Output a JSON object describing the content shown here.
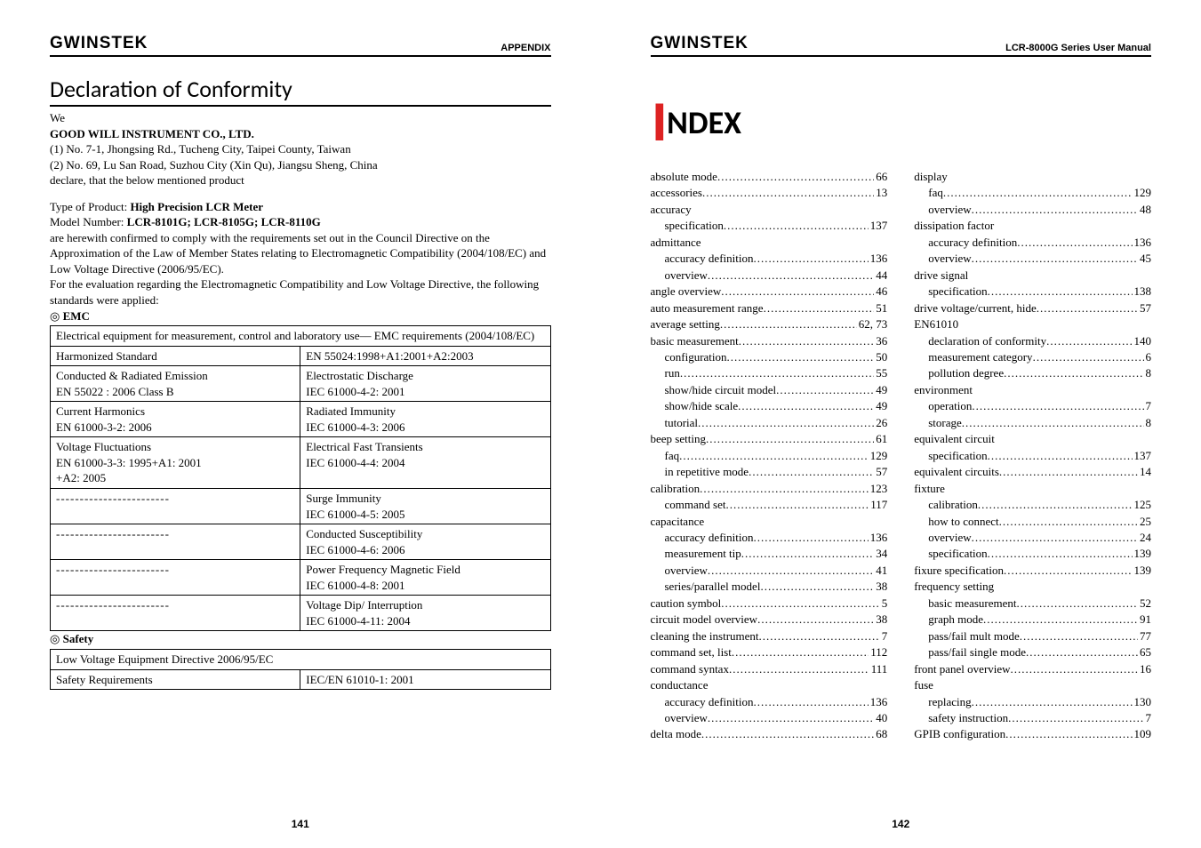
{
  "brand": "GWINSTEK",
  "left": {
    "header_right": "APPENDIX",
    "page_num": "141",
    "title": "Declaration of Conformity",
    "we": "We",
    "company": "GOOD WILL INSTRUMENT CO., LTD.",
    "addr1": "(1) No. 7-1, Jhongsing Rd., Tucheng City, Taipei County, Taiwan",
    "addr2": "(2) No. 69, Lu San Road, Suzhou City (Xin Qu), Jiangsu Sheng, China",
    "declare": "declare, that the below mentioned product",
    "type_label": "Type of Product: ",
    "type_value": "High Precision LCR Meter",
    "model_label": "Model Number: ",
    "model_value": "LCR-8101G; LCR-8105G; LCR-8110G",
    "para1": "are herewith confirmed to comply with the requirements set out in the Council Directive on the Approximation of the Law of Member States relating to Electromagnetic Compatibility (2004/108/EC) and Low Voltage Directive (2006/95/EC).",
    "para2": "For the evaluation regarding the Electromagnetic Compatibility and Low Voltage Directive, the following standards were applied:",
    "emc_label": "◎ EMC",
    "emc_caption": "Electrical equipment for measurement, control and laboratory use–– EMC requirements (2004/108/EC)",
    "emc_rows": [
      [
        "Harmonized Standard",
        "EN 55024:1998+A1:2001+A2:2003"
      ],
      [
        "Conducted & Radiated Emission\nEN 55022 : 2006       Class B",
        "Electrostatic Discharge\nIEC 61000-4-2: 2001"
      ],
      [
        "Current Harmonics\nEN 61000-3-2: 2006",
        "Radiated Immunity\nIEC 61000-4-3: 2006"
      ],
      [
        "Voltage Fluctuations\nEN 61000-3-3: 1995+A1: 2001\n+A2: 2005",
        "Electrical Fast Transients\nIEC 61000-4-4: 2004"
      ],
      [
        "------------------------",
        "Surge Immunity\nIEC 61000-4-5: 2005"
      ],
      [
        "------------------------",
        "Conducted Susceptibility\nIEC 61000-4-6: 2006"
      ],
      [
        "------------------------",
        "Power Frequency Magnetic Field\nIEC 61000-4-8: 2001"
      ],
      [
        "------------------------",
        "Voltage Dip/ Interruption\nIEC 61000-4-11: 2004"
      ]
    ],
    "safety_label": "◎ Safety",
    "safety_caption": "Low Voltage Equipment Directive 2006/95/EC",
    "safety_row": [
      "Safety Requirements",
      "IEC/EN 61010-1: 2001"
    ]
  },
  "right": {
    "header_right": "LCR-8000G Series User Manual",
    "page_num": "142",
    "title_rest": "NDEX",
    "col1": [
      {
        "t": "absolute mode",
        "p": "66"
      },
      {
        "t": "accessories",
        "p": "13"
      },
      {
        "t": "accuracy",
        "head": true
      },
      {
        "t": "specification",
        "p": "137",
        "sub": true
      },
      {
        "t": "admittance",
        "head": true
      },
      {
        "t": "accuracy definition",
        "p": "136",
        "sub": true
      },
      {
        "t": "overview",
        "p": "44",
        "sub": true
      },
      {
        "t": "angle overview",
        "p": "46"
      },
      {
        "t": "auto measurement range",
        "p": "51"
      },
      {
        "t": "average setting",
        "p": "62, 73"
      },
      {
        "t": "basic measurement",
        "p": "36"
      },
      {
        "t": "configuration",
        "p": "50",
        "sub": true
      },
      {
        "t": "run",
        "p": "55",
        "sub": true
      },
      {
        "t": "show/hide circuit model",
        "p": "49",
        "sub": true
      },
      {
        "t": "show/hide scale",
        "p": "49",
        "sub": true
      },
      {
        "t": "tutorial",
        "p": "26",
        "sub": true
      },
      {
        "t": "beep setting",
        "p": "61"
      },
      {
        "t": "faq",
        "p": "129",
        "sub": true
      },
      {
        "t": "in repetitive mode",
        "p": "57",
        "sub": true
      },
      {
        "t": "calibration",
        "p": "123"
      },
      {
        "t": "command set",
        "p": "117",
        "sub": true
      },
      {
        "t": "capacitance",
        "head": true
      },
      {
        "t": "accuracy definition",
        "p": "136",
        "sub": true
      },
      {
        "t": "measurement tip",
        "p": "34",
        "sub": true
      },
      {
        "t": "overview",
        "p": "41",
        "sub": true
      },
      {
        "t": "series/parallel model",
        "p": "38",
        "sub": true
      },
      {
        "t": "caution symbol",
        "p": "5"
      },
      {
        "t": "circuit model overview",
        "p": "38"
      },
      {
        "t": "cleaning the instrument",
        "p": "7"
      },
      {
        "t": "command set, list",
        "p": "112"
      },
      {
        "t": "command syntax",
        "p": "111"
      },
      {
        "t": "conductance",
        "head": true
      },
      {
        "t": "accuracy definition",
        "p": "136",
        "sub": true
      },
      {
        "t": "overview",
        "p": "40",
        "sub": true
      },
      {
        "t": "delta mode",
        "p": "68"
      }
    ],
    "col2": [
      {
        "t": "display",
        "head": true
      },
      {
        "t": "faq",
        "p": "129",
        "sub": true
      },
      {
        "t": "overview",
        "p": "48",
        "sub": true
      },
      {
        "t": "dissipation factor",
        "head": true
      },
      {
        "t": "accuracy definition",
        "p": "136",
        "sub": true
      },
      {
        "t": "overview",
        "p": "45",
        "sub": true
      },
      {
        "t": "drive signal",
        "head": true
      },
      {
        "t": "specification",
        "p": "138",
        "sub": true
      },
      {
        "t": "drive voltage/current, hide",
        "p": "57"
      },
      {
        "t": "EN61010",
        "head": true
      },
      {
        "t": "declaration of conformity",
        "p": "140",
        "sub": true
      },
      {
        "t": "measurement category",
        "p": "6",
        "sub": true
      },
      {
        "t": "pollution degree",
        "p": "8",
        "sub": true
      },
      {
        "t": "environment",
        "head": true
      },
      {
        "t": "operation",
        "p": "7",
        "sub": true
      },
      {
        "t": "storage",
        "p": "8",
        "sub": true
      },
      {
        "t": "equivalent circuit",
        "head": true
      },
      {
        "t": "specification",
        "p": "137",
        "sub": true
      },
      {
        "t": "equivalent circuits",
        "p": "14"
      },
      {
        "t": "fixture",
        "head": true
      },
      {
        "t": "calibration",
        "p": "125",
        "sub": true
      },
      {
        "t": "how to connect",
        "p": "25",
        "sub": true
      },
      {
        "t": "overview",
        "p": "24",
        "sub": true
      },
      {
        "t": "specification",
        "p": "139",
        "sub": true
      },
      {
        "t": "fixure specification",
        "p": "139"
      },
      {
        "t": "frequency setting",
        "head": true
      },
      {
        "t": "basic measurement",
        "p": "52",
        "sub": true
      },
      {
        "t": "graph mode",
        "p": "91",
        "sub": true
      },
      {
        "t": "pass/fail mult mode",
        "p": "77",
        "sub": true
      },
      {
        "t": "pass/fail single mode",
        "p": "65",
        "sub": true
      },
      {
        "t": "front panel overview",
        "p": "16"
      },
      {
        "t": "fuse",
        "head": true
      },
      {
        "t": "replacing",
        "p": "130",
        "sub": true
      },
      {
        "t": "safety instruction",
        "p": "7",
        "sub": true
      },
      {
        "t": "GPIB configuration",
        "p": "109"
      }
    ]
  }
}
